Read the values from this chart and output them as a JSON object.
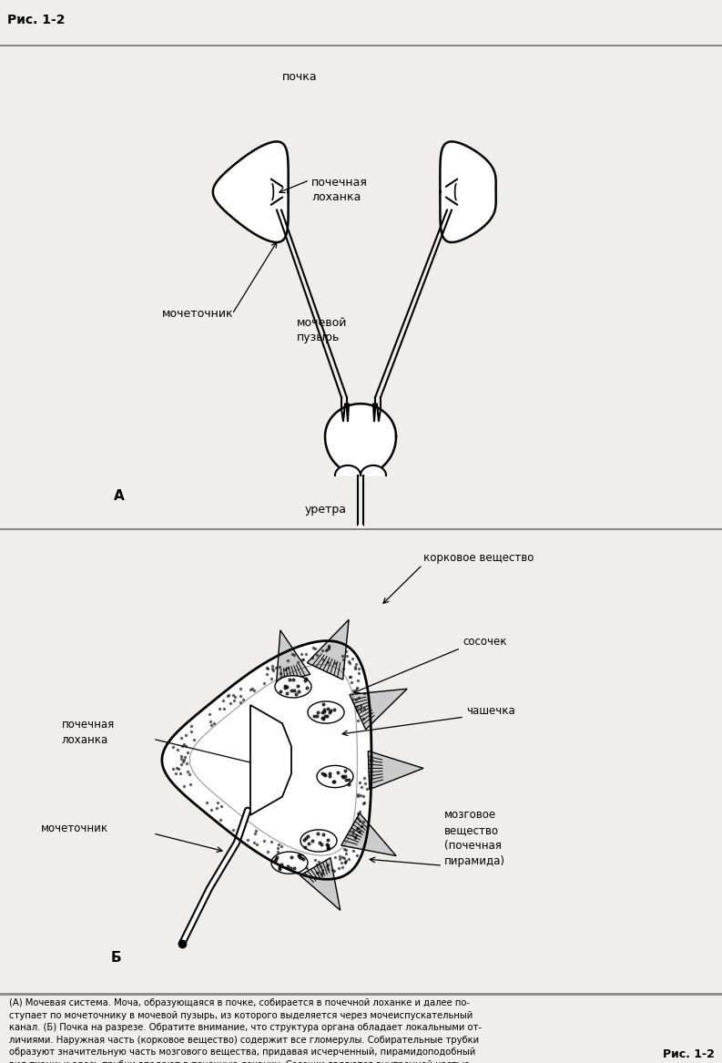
{
  "title": "Рис. 1-2",
  "background_color": "#e8e8e8",
  "panel_bg": "#f0eeeb",
  "label_A": "А",
  "label_B": "Б",
  "labels_top": {
    "pochka": "почка",
    "pochechnaya_lokhanka": "почечная\nлоханка",
    "mochetochnik": "мочеточник",
    "mochevoy_puzyr": "мочевой\nпузырь",
    "uretra": "уретра"
  },
  "labels_bottom": {
    "korkovoe": "корковое вещество",
    "sosochek": "сосочек",
    "chashechka": "чашечка",
    "pochechnaya_lokhanka": "почечная\nлоханка",
    "mochetochnik": "мочеточник",
    "mozgovoe": "мозговое\nвещество\n(почечная\nпирамида)"
  },
  "caption": "(А) Мочевая система. Моча, образующаяся в почке, собирается в почечной лоханке и далее по-\nступает по мочеточнику в мочевой пузырь, из которого выделяется через мочеиспускательный\nканал. (Б) Почка на разрезе. Обратите внимание, что структура органа обладает локальными от-\nличиями. Наружная часть (корковое вещество) содержит все гломерулы. Собирательные трубки\nобразуют значительную часть мозгового вещества, придавая исчерченный, пирамидоподобный\nвид ткани; и здесь трубки впадают в почечную лоханку. Сосочки являются внутренней частью\nмозгового вещества почки.",
  "footer": "Рис. 1-2"
}
